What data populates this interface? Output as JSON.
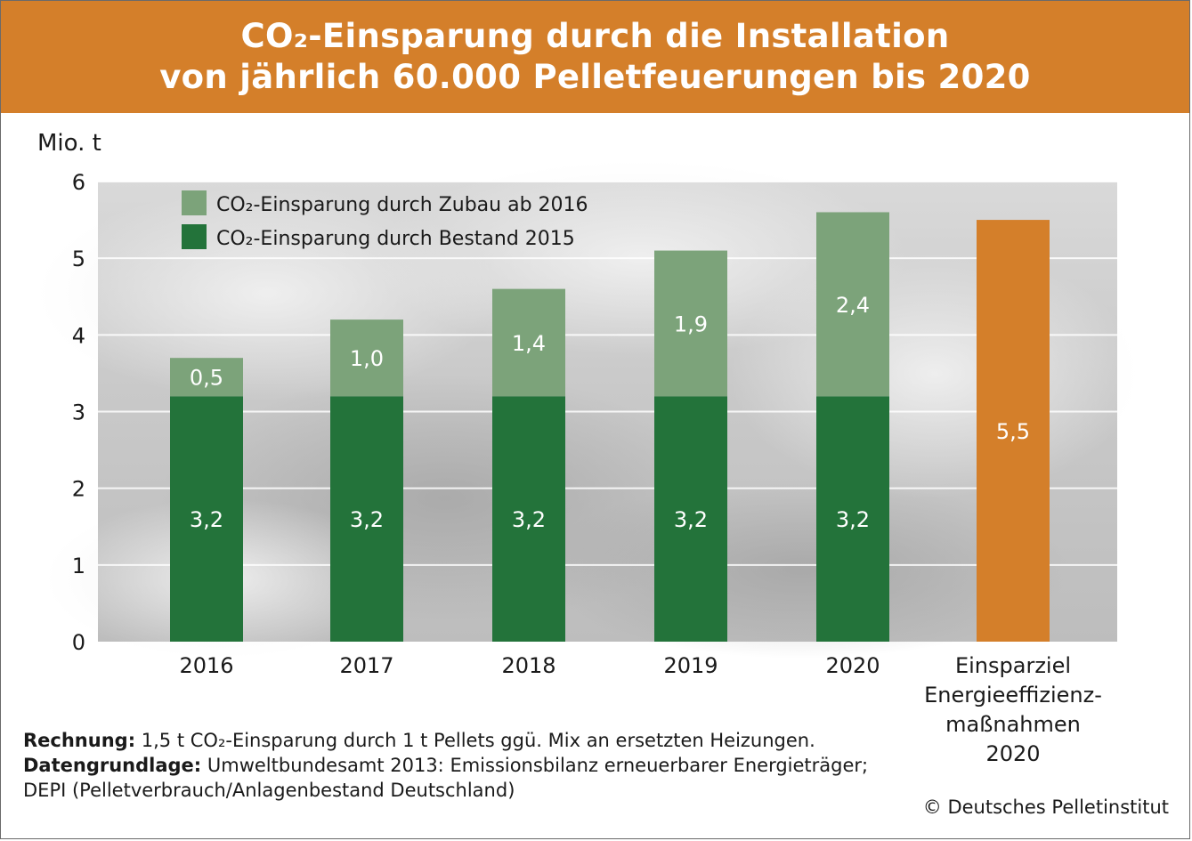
{
  "title": {
    "line1": "CO₂-Einsparung durch die Installation",
    "line2": "von jährlich 60.000 Pelletfeuerungen bis 2020"
  },
  "unit_label": "Mio. t",
  "footnotes": {
    "rechnung_label": "Rechnung:",
    "rechnung_text": " 1,5 t CO₂-Einsparung durch 1 t Pellets ggü. Mix an ersetzten Heizungen.",
    "daten_label": "Datengrundlage:",
    "daten_text": " Umweltbundesamt 2013: Emissionsbilanz erneuerbarer Energieträger;",
    "daten_text2": "DEPI (Pelletverbrauch/Anlagenbestand Deutschland)"
  },
  "copyright": "© Deutsches Pelletinstitut",
  "colors": {
    "title_bg": "#d47f2a",
    "bestand": "#23733a",
    "zubau": "#7ca37a",
    "target": "#d47f2a"
  },
  "chart_data": {
    "type": "bar",
    "stacked": true,
    "title": "CO₂-Einsparung durch die Installation von jährlich 60.000 Pelletfeuerungen bis 2020",
    "ylabel": "Mio. t",
    "xlabel": "",
    "ylim": [
      0,
      6
    ],
    "yticks": [
      "0",
      "1",
      "2",
      "3",
      "4",
      "5",
      "6"
    ],
    "grid": true,
    "legend_position": "top-left",
    "categories": [
      "2016",
      "2017",
      "2018",
      "2019",
      "2020"
    ],
    "series": [
      {
        "name": "CO₂-Einsparung durch Bestand 2015",
        "values": [
          3.2,
          3.2,
          3.2,
          3.2,
          3.2
        ],
        "labels": [
          "3,2",
          "3,2",
          "3,2",
          "3,2",
          "3,2"
        ]
      },
      {
        "name": "CO₂-Einsparung durch Zubau ab 2016",
        "values": [
          0.5,
          1.0,
          1.4,
          1.9,
          2.4
        ],
        "labels": [
          "0,5",
          "1,0",
          "1,4",
          "1,9",
          "2,4"
        ]
      }
    ],
    "target": {
      "category_lines": [
        "Einsparziel",
        "Energieeffizienz-",
        "maßnahmen",
        "2020"
      ],
      "value": 5.5,
      "label": "5,5"
    }
  }
}
